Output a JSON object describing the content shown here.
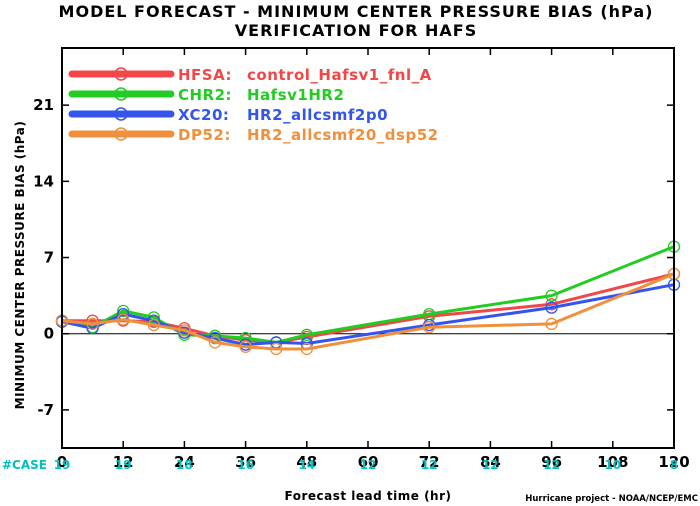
{
  "chart_data": {
    "type": "line",
    "title": "MODEL FORECAST - MINIMUM CENTER PRESSURE BIAS (hPa)",
    "subtitle": "VERIFICATION FOR HAFS",
    "xlabel": "Forecast lead time (hr)",
    "ylabel": "MINIMUM CENTER PRESSURE BIAS (hPa)",
    "xlim": [
      0,
      120
    ],
    "ylim": [
      -10.5,
      26.25
    ],
    "xticks": [
      0,
      12,
      24,
      36,
      48,
      60,
      72,
      84,
      96,
      108,
      120
    ],
    "yticks": [
      -7,
      0,
      7,
      14,
      21
    ],
    "zero_line": true,
    "legend_position": "top-left",
    "case_label": "#CASE",
    "cases": [
      {
        "x": 0,
        "n": "19"
      },
      {
        "x": 12,
        "n": "19"
      },
      {
        "x": 24,
        "n": "18"
      },
      {
        "x": 36,
        "n": "16"
      },
      {
        "x": 48,
        "n": "14"
      },
      {
        "x": 60,
        "n": "12"
      },
      {
        "x": 72,
        "n": "12"
      },
      {
        "x": 84,
        "n": "12"
      },
      {
        "x": 96,
        "n": "12"
      },
      {
        "x": 108,
        "n": "10"
      },
      {
        "x": 120,
        "n": "8"
      }
    ],
    "series": [
      {
        "name": "HFSA:",
        "desc": "control_Hafsv1_fnl_A",
        "color": "#f04848",
        "x": [
          0,
          6,
          12,
          18,
          24,
          30,
          36,
          42,
          48,
          72,
          96,
          120
        ],
        "y": [
          1.2,
          1.2,
          1.2,
          1.1,
          0.5,
          -0.2,
          -0.6,
          -0.8,
          -0.3,
          1.6,
          2.7,
          5.5
        ]
      },
      {
        "name": "CHR2:",
        "desc": "Hafsv1HR2",
        "color": "#22cc22",
        "x": [
          0,
          6,
          12,
          18,
          24,
          30,
          36,
          42,
          48,
          72,
          96,
          120
        ],
        "y": [
          1.2,
          0.6,
          2.1,
          1.5,
          -0.1,
          -0.2,
          -0.4,
          -0.8,
          -0.1,
          1.8,
          3.5,
          8.0
        ]
      },
      {
        "name": "XC20:",
        "desc": "HR2_allcsmf2p0",
        "color": "#3355ee",
        "x": [
          0,
          6,
          12,
          18,
          24,
          30,
          36,
          42,
          48,
          72,
          96,
          120
        ],
        "y": [
          1.1,
          0.5,
          1.8,
          1.2,
          0.1,
          -0.4,
          -1.0,
          -0.8,
          -0.9,
          0.8,
          2.4,
          4.5
        ]
      },
      {
        "name": "DP52:",
        "desc": "HR2_allcsmf20_dsp52",
        "color": "#f0903c",
        "x": [
          0,
          6,
          12,
          18,
          24,
          30,
          36,
          42,
          48,
          72,
          96,
          120
        ],
        "y": [
          1.2,
          0.9,
          1.3,
          0.8,
          0.3,
          -0.8,
          -1.2,
          -1.4,
          -1.4,
          0.6,
          0.9,
          5.5
        ]
      }
    ]
  },
  "credit": "Hurricane project - NOAA/NCEP/EMC"
}
